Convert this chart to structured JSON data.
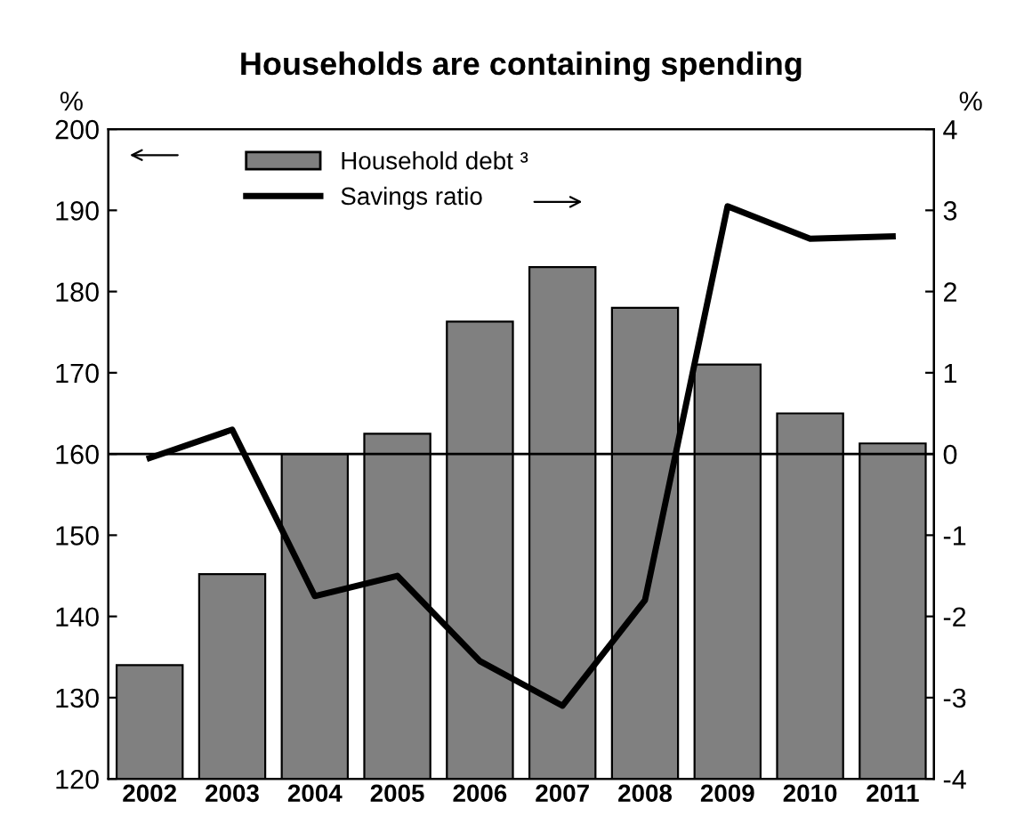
{
  "chart_data": {
    "type": "bar",
    "title": "Households are containing spending",
    "ylabel": "%",
    "y2label": "%",
    "categories": [
      "2002",
      "2003",
      "2004",
      "2005",
      "2006",
      "2007",
      "2008",
      "2009",
      "2010",
      "2011"
    ],
    "series": [
      {
        "name": "Household debt ³",
        "color": "#808080",
        "values": [
          134,
          145.2,
          160,
          162.5,
          176.3,
          183,
          178,
          171,
          165,
          161.3
        ]
      },
      {
        "name": "Savings ratio",
        "type": "line",
        "axis": "y2",
        "color": "#000000",
        "values": [
          -0.05,
          0.3,
          -1.75,
          -1.5,
          -2.55,
          -3.1,
          -1.8,
          3.05,
          2.65,
          2.68
        ]
      }
    ],
    "ylim": [
      120,
      200
    ],
    "yticks": [
      120,
      130,
      140,
      150,
      160,
      170,
      180,
      190,
      200
    ],
    "y2lim": [
      -4,
      4
    ],
    "y2ticks": [
      {
        "value": -4,
        "label": "-4"
      },
      {
        "value": -3,
        "label": "-3"
      },
      {
        "value": -2,
        "label": "-2"
      },
      {
        "value": -1,
        "label": "-1"
      },
      0,
      1,
      2,
      3,
      4
    ],
    "ref_lines": [
      {
        "axis": "y",
        "value": 160,
        "color": "#000000"
      }
    ],
    "legend": "top left",
    "grid": false,
    "marker": "none",
    "line_style": "solid"
  }
}
